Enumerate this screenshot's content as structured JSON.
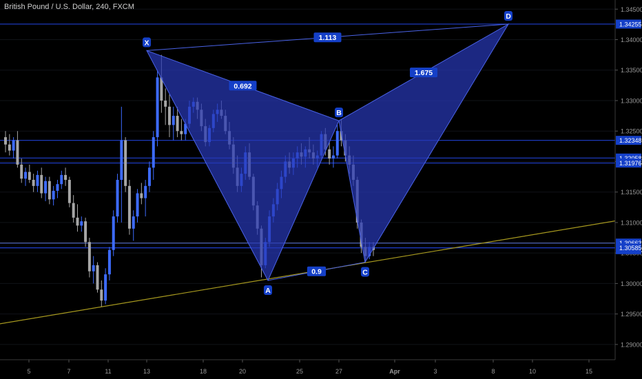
{
  "header": {
    "title": "British Pound / U.S. Dollar, 240, FXCM"
  },
  "colors": {
    "background": "#000000",
    "candle_up": "#3d6bff",
    "candle_down": "#a6a6a6",
    "pattern_fill": "#2738b4",
    "pattern_line": "#4a63e8",
    "trendline": "#a89a1f",
    "hline": "#1f3fd0",
    "axis_text": "#9a9a9a",
    "label_bg": "#1540c8"
  },
  "chart_data": {
    "type": "candlestick",
    "ylim": [
      1.2875,
      1.3465
    ],
    "y_ticks": [
      "1.29000",
      "1.29500",
      "1.30000",
      "1.30500",
      "1.31000",
      "1.31500",
      "1.32000",
      "1.32500",
      "1.33000",
      "1.33500",
      "1.34000",
      "1.34500"
    ],
    "x_ticks": [
      "5",
      "7",
      "11",
      "13",
      "18",
      "20",
      "25",
      "27",
      "Apr",
      "3",
      "8",
      "10",
      "15"
    ],
    "price_labels": [
      {
        "text": "1.34255",
        "value": 1.34255
      },
      {
        "text": "1.32348",
        "value": 1.32348
      },
      {
        "text": "1.32058",
        "value": 1.32058
      },
      {
        "text": "1.31976",
        "value": 1.31976
      },
      {
        "text": "1.30663",
        "value": 1.30663
      },
      {
        "text": "02:26:40",
        "value": 1.30555
      },
      {
        "text": "1.30585",
        "value": 1.30585
      }
    ],
    "horizontal_lines": [
      1.34255,
      1.32348,
      1.32058,
      1.31976,
      1.30663,
      1.30585
    ],
    "harmonic_pattern": {
      "points": [
        {
          "name": "X",
          "date": "Mar 13",
          "value": 1.3382
        },
        {
          "name": "A",
          "date": "Mar 22",
          "value": 1.3005
        },
        {
          "name": "B",
          "date": "Mar 27",
          "value": 1.3267
        },
        {
          "name": "C",
          "date": "Mar 28",
          "value": 1.3035
        },
        {
          "name": "D",
          "date": "Apr 9",
          "value": 1.34255
        }
      ],
      "ratios": [
        {
          "text": "1.113",
          "from": "X",
          "to": "D"
        },
        {
          "text": "0.692",
          "from": "X",
          "to": "B"
        },
        {
          "text": "1.675",
          "from": "B",
          "to": "D"
        },
        {
          "text": "0.9",
          "from": "A",
          "to": "C"
        }
      ]
    },
    "trendline": {
      "from": {
        "date": "Mar 1",
        "value": 1.2932
      },
      "to": {
        "date": "Apr 17",
        "value": 1.3103
      }
    },
    "candles": [
      [
        1.324,
        1.325,
        1.3215,
        1.3228
      ],
      [
        1.3228,
        1.3245,
        1.321,
        1.3218
      ],
      [
        1.3218,
        1.324,
        1.3205,
        1.3235
      ],
      [
        1.3235,
        1.325,
        1.319,
        1.3195
      ],
      [
        1.3195,
        1.3205,
        1.3165,
        1.3172
      ],
      [
        1.3172,
        1.319,
        1.316,
        1.3183
      ],
      [
        1.3183,
        1.3195,
        1.3165,
        1.317
      ],
      [
        1.317,
        1.318,
        1.315,
        1.316
      ],
      [
        1.316,
        1.3185,
        1.315,
        1.3178
      ],
      [
        1.3178,
        1.319,
        1.314,
        1.3148
      ],
      [
        1.3148,
        1.3175,
        1.3135,
        1.3168
      ],
      [
        1.3168,
        1.3175,
        1.313,
        1.3138
      ],
      [
        1.3138,
        1.316,
        1.3128,
        1.3152
      ],
      [
        1.3152,
        1.317,
        1.314,
        1.3163
      ],
      [
        1.3163,
        1.3185,
        1.3155,
        1.3178
      ],
      [
        1.3178,
        1.319,
        1.316,
        1.317
      ],
      [
        1.317,
        1.3175,
        1.3125,
        1.3132
      ],
      [
        1.3132,
        1.3145,
        1.31,
        1.3108
      ],
      [
        1.3108,
        1.313,
        1.3085,
        1.3095
      ],
      [
        1.3095,
        1.311,
        1.3085,
        1.3102
      ],
      [
        1.3102,
        1.3108,
        1.306,
        1.3068
      ],
      [
        1.3068,
        1.3075,
        1.301,
        1.302
      ],
      [
        1.302,
        1.3045,
        1.3,
        1.303
      ],
      [
        1.303,
        1.3035,
        1.2985,
        1.299
      ],
      [
        1.299,
        1.3005,
        1.2962,
        1.2972
      ],
      [
        1.2972,
        1.3025,
        1.2966,
        1.3015
      ],
      [
        1.3015,
        1.306,
        1.3005,
        1.3055
      ],
      [
        1.3055,
        1.312,
        1.3045,
        1.311
      ],
      [
        1.311,
        1.318,
        1.31,
        1.317
      ],
      [
        1.317,
        1.329,
        1.31,
        1.3235
      ],
      [
        1.3235,
        1.324,
        1.315,
        1.316
      ],
      [
        1.316,
        1.317,
        1.308,
        1.309
      ],
      [
        1.309,
        1.312,
        1.307,
        1.311
      ],
      [
        1.311,
        1.3155,
        1.31,
        1.3148
      ],
      [
        1.3148,
        1.3165,
        1.313,
        1.314
      ],
      [
        1.314,
        1.317,
        1.311,
        1.316
      ],
      [
        1.316,
        1.32,
        1.315,
        1.319
      ],
      [
        1.319,
        1.325,
        1.317,
        1.324
      ],
      [
        1.324,
        1.335,
        1.3225,
        1.3338
      ],
      [
        1.3338,
        1.3375,
        1.328,
        1.33
      ],
      [
        1.33,
        1.332,
        1.326,
        1.329
      ],
      [
        1.329,
        1.331,
        1.324,
        1.326
      ],
      [
        1.326,
        1.329,
        1.3235,
        1.3275
      ],
      [
        1.3275,
        1.329,
        1.324,
        1.325
      ],
      [
        1.325,
        1.327,
        1.3235,
        1.3245
      ],
      [
        1.3245,
        1.327,
        1.3235,
        1.3262
      ],
      [
        1.3262,
        1.33,
        1.3255,
        1.329
      ],
      [
        1.329,
        1.3305,
        1.328,
        1.3298
      ],
      [
        1.3298,
        1.3305,
        1.327,
        1.3285
      ],
      [
        1.3285,
        1.3295,
        1.325,
        1.3258
      ],
      [
        1.3258,
        1.327,
        1.3225,
        1.3232
      ],
      [
        1.3232,
        1.326,
        1.3225,
        1.3255
      ],
      [
        1.3255,
        1.3285,
        1.3248,
        1.3278
      ],
      [
        1.3278,
        1.3295,
        1.3265,
        1.3285
      ],
      [
        1.3285,
        1.33,
        1.327,
        1.3275
      ],
      [
        1.3275,
        1.3285,
        1.3245,
        1.325
      ],
      [
        1.325,
        1.3265,
        1.322,
        1.3228
      ],
      [
        1.3228,
        1.324,
        1.318,
        1.319
      ],
      [
        1.319,
        1.321,
        1.315,
        1.316
      ],
      [
        1.316,
        1.319,
        1.315,
        1.318
      ],
      [
        1.318,
        1.3225,
        1.317,
        1.3215
      ],
      [
        1.3215,
        1.323,
        1.317,
        1.3175
      ],
      [
        1.3175,
        1.318,
        1.312,
        1.3128
      ],
      [
        1.3128,
        1.3135,
        1.308,
        1.309
      ],
      [
        1.309,
        1.3095,
        1.301,
        1.303
      ],
      [
        1.303,
        1.3075,
        1.3025,
        1.3068
      ],
      [
        1.3068,
        1.312,
        1.306,
        1.311
      ],
      [
        1.311,
        1.314,
        1.31,
        1.313
      ],
      [
        1.313,
        1.3165,
        1.312,
        1.3155
      ],
      [
        1.3155,
        1.3185,
        1.314,
        1.3175
      ],
      [
        1.3175,
        1.321,
        1.3165,
        1.32
      ],
      [
        1.32,
        1.3215,
        1.318,
        1.319
      ],
      [
        1.319,
        1.3215,
        1.3178,
        1.3205
      ],
      [
        1.3205,
        1.3225,
        1.319,
        1.3215
      ],
      [
        1.3215,
        1.323,
        1.3195,
        1.3208
      ],
      [
        1.3208,
        1.3225,
        1.319,
        1.322
      ],
      [
        1.322,
        1.324,
        1.3205,
        1.3215
      ],
      [
        1.3215,
        1.3228,
        1.3195,
        1.3205
      ],
      [
        1.3205,
        1.3218,
        1.319,
        1.321
      ],
      [
        1.321,
        1.325,
        1.3205,
        1.3245
      ],
      [
        1.3245,
        1.3255,
        1.321,
        1.322
      ],
      [
        1.322,
        1.3232,
        1.3195,
        1.3205
      ],
      [
        1.3205,
        1.3225,
        1.319,
        1.321
      ],
      [
        1.321,
        1.326,
        1.3205,
        1.325
      ],
      [
        1.325,
        1.327,
        1.3225,
        1.3235
      ],
      [
        1.3235,
        1.3245,
        1.32,
        1.321
      ],
      [
        1.321,
        1.3225,
        1.318,
        1.3195
      ],
      [
        1.3195,
        1.321,
        1.316,
        1.317
      ],
      [
        1.317,
        1.3175,
        1.309,
        1.31
      ],
      [
        1.31,
        1.3105,
        1.305,
        1.306
      ],
      [
        1.306,
        1.3075,
        1.3035,
        1.3045
      ],
      [
        1.3045,
        1.3068,
        1.304,
        1.306
      ],
      [
        1.306,
        1.3068,
        1.3045,
        1.3055
      ]
    ]
  }
}
